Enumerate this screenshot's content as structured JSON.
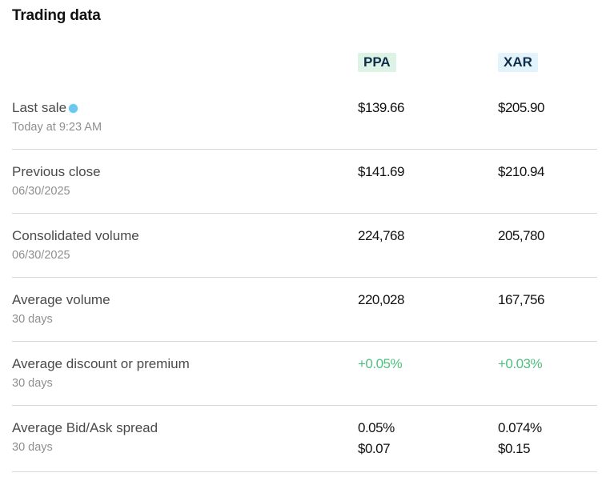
{
  "title": "Trading data",
  "columns": [
    {
      "label": "PPA",
      "badge_color": "#dcf3e6"
    },
    {
      "label": "XAR",
      "badge_color": "#e3f3fb"
    }
  ],
  "colors": {
    "positive": "#4fbf80",
    "live_dot": "#6cc8ee",
    "divider": "#d9d9d9"
  },
  "rows": [
    {
      "label": "Last sale",
      "sub": "Today at 9:23 AM",
      "live_indicator": true,
      "ppa": "$139.66",
      "xar": "$205.90"
    },
    {
      "label": "Previous close",
      "sub": "06/30/2025",
      "ppa": "$141.69",
      "xar": "$210.94"
    },
    {
      "label": "Consolidated volume",
      "sub": "06/30/2025",
      "ppa": "224,768",
      "xar": "205,780"
    },
    {
      "label": "Average volume",
      "sub": "30 days",
      "ppa": "220,028",
      "xar": "167,756"
    },
    {
      "label": "Average discount or premium",
      "sub": "30 days",
      "ppa": "+0.05%",
      "xar": "+0.03%"
    },
    {
      "label": "Average Bid/Ask spread",
      "sub": "30 days",
      "ppa": "0.05%",
      "ppa_2": "$0.07",
      "xar": "0.074%",
      "xar_2": "$0.15"
    }
  ]
}
